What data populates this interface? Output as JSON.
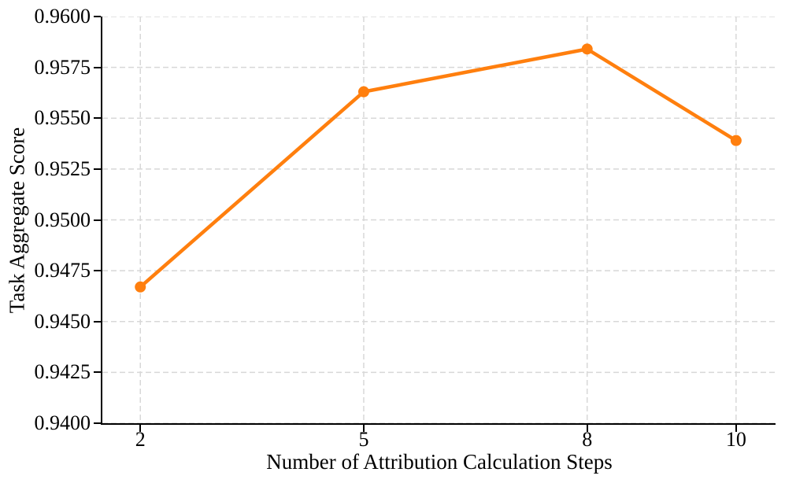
{
  "chart_data": {
    "type": "line",
    "title": "",
    "xlabel": "Number of Attribution Calculation Steps",
    "ylabel": "Task Aggregate Score",
    "x": [
      2,
      5,
      8,
      10
    ],
    "series": [
      {
        "name": "Task Aggregate Score",
        "values": [
          0.9467,
          0.9563,
          0.9584,
          0.9539
        ]
      }
    ],
    "xticks": [
      2,
      5,
      8,
      10
    ],
    "xtick_labels": [
      "2",
      "5",
      "8",
      "10"
    ],
    "yticks": [
      0.94,
      0.9425,
      0.945,
      0.9475,
      0.95,
      0.9525,
      0.955,
      0.9575,
      0.96
    ],
    "ytick_labels": [
      "0.9400",
      "0.9425",
      "0.9450",
      "0.9475",
      "0.9500",
      "0.9525",
      "0.9550",
      "0.9575",
      "0.9600"
    ],
    "xlim": [
      1.49,
      10.53
    ],
    "ylim": [
      0.94,
      0.96
    ],
    "grid": true,
    "legend": null,
    "colors": {
      "line": "#ff7f0e",
      "marker": "#ff7f0e",
      "grid": "#d8d8d8",
      "axis": "#000000",
      "background": "#ffffff"
    }
  }
}
